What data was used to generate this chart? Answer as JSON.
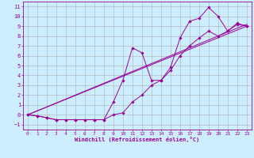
{
  "xlabel": "Windchill (Refroidissement éolien,°C)",
  "bg_color": "#cceeff",
  "grid_color": "#b0b0b0",
  "line_color": "#990099",
  "xlim": [
    -0.5,
    23.5
  ],
  "ylim": [
    -1.5,
    11.5
  ],
  "xticks": [
    0,
    1,
    2,
    3,
    4,
    5,
    6,
    7,
    8,
    9,
    10,
    11,
    12,
    13,
    14,
    15,
    16,
    17,
    18,
    19,
    20,
    21,
    22,
    23
  ],
  "yticks": [
    -1,
    0,
    1,
    2,
    3,
    4,
    5,
    6,
    7,
    8,
    9,
    10,
    11
  ],
  "line1_x": [
    0,
    1,
    2,
    3,
    4,
    5,
    6,
    7,
    8,
    9,
    10,
    11,
    12,
    13,
    14,
    15,
    16,
    17,
    18,
    19,
    20,
    21,
    22,
    23
  ],
  "line1_y": [
    0,
    -0.1,
    -0.3,
    -0.5,
    -0.5,
    -0.5,
    -0.5,
    -0.5,
    -0.5,
    0.0,
    0.2,
    1.3,
    2.0,
    3.0,
    3.5,
    4.5,
    6.0,
    7.0,
    7.8,
    8.5,
    8.0,
    8.5,
    9.2,
    9.0
  ],
  "line2_x": [
    0,
    1,
    2,
    3,
    4,
    5,
    6,
    7,
    8,
    9,
    10,
    11,
    12,
    13,
    14,
    15,
    16,
    17,
    18,
    19,
    20,
    21,
    22,
    23
  ],
  "line2_y": [
    0,
    -0.1,
    -0.3,
    -0.5,
    -0.5,
    -0.5,
    -0.5,
    -0.5,
    -0.5,
    1.3,
    3.5,
    6.8,
    6.3,
    3.5,
    3.5,
    4.8,
    7.8,
    9.5,
    9.8,
    10.9,
    10.0,
    8.5,
    9.3,
    9.0
  ],
  "line3_x": [
    0,
    23
  ],
  "line3_y": [
    0,
    9.0
  ],
  "line4_x": [
    0,
    23
  ],
  "line4_y": [
    0,
    9.2
  ]
}
